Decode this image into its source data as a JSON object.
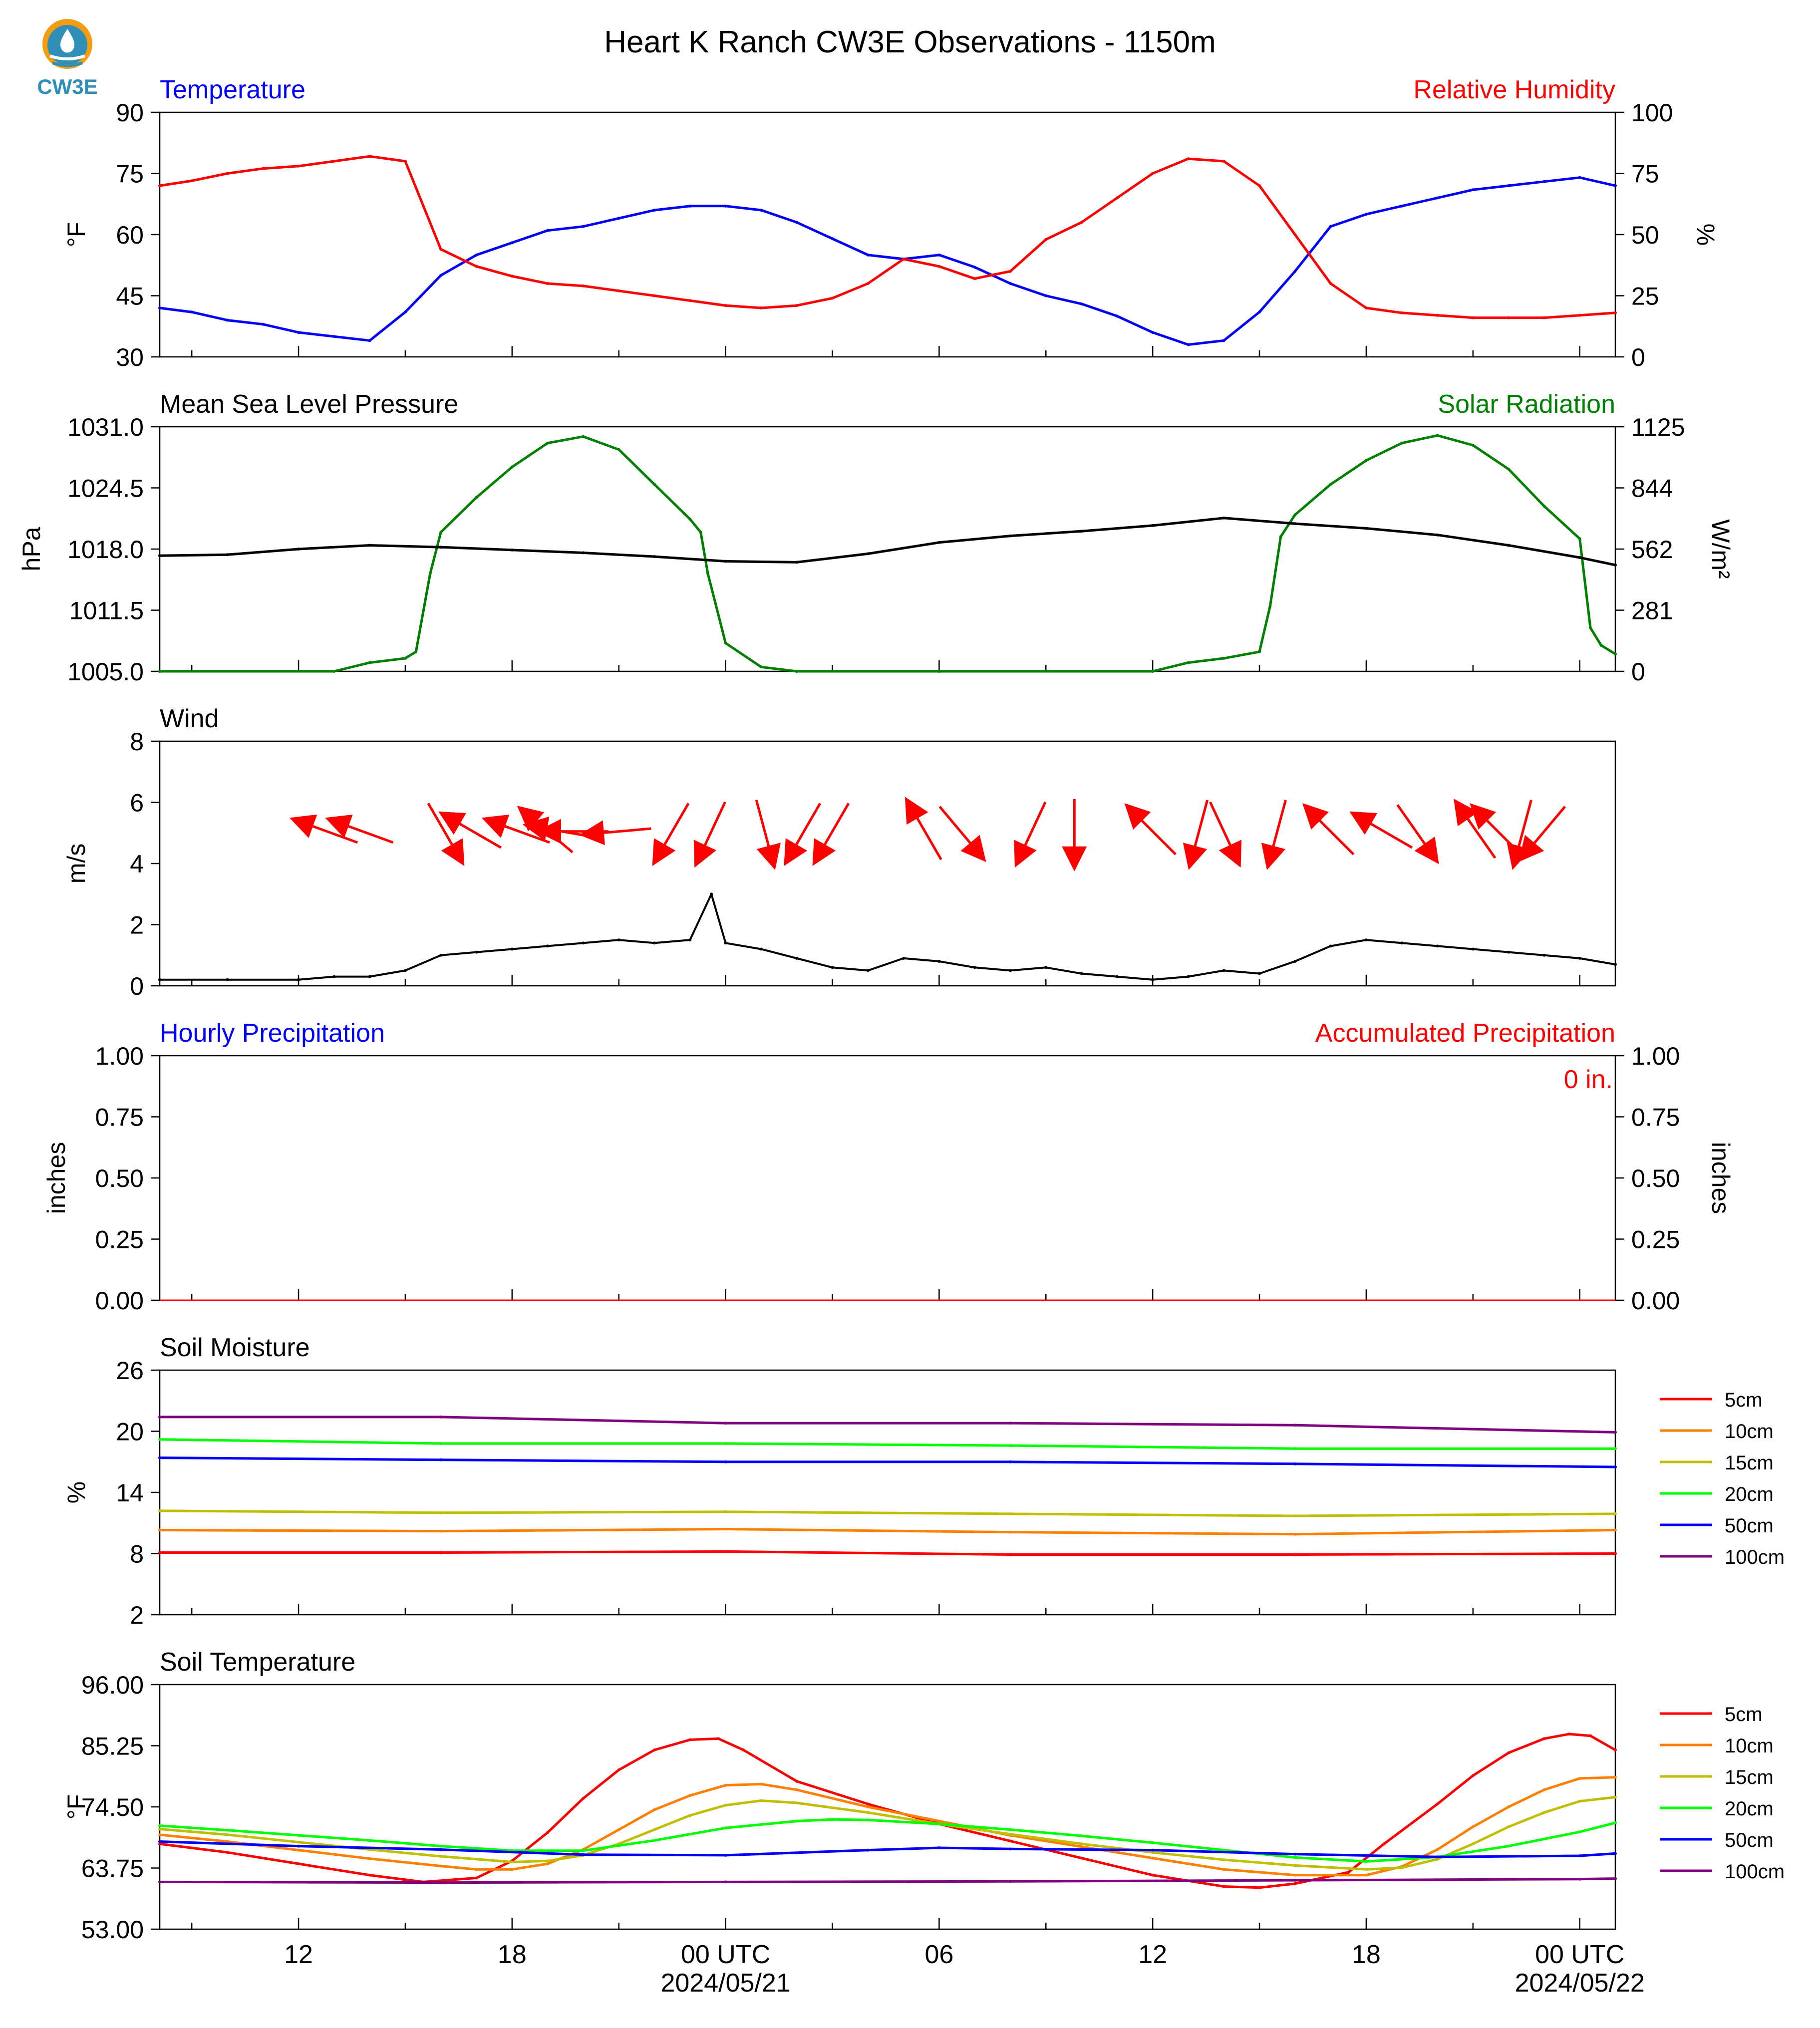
{
  "logo": {
    "text": "CW3E"
  },
  "title": "Heart K Ranch CW3E Observations - 1150m",
  "time_axis": {
    "tick_labels": [
      {
        "hour": 12,
        "label": "12"
      },
      {
        "hour": 18,
        "label": "18"
      },
      {
        "hour": 24,
        "label": "00 UTC",
        "sublabel": "2024/05/21"
      },
      {
        "hour": 30,
        "label": "06"
      },
      {
        "hour": 36,
        "label": "12"
      },
      {
        "hour": 42,
        "label": "18"
      },
      {
        "hour": 48,
        "label": "00 UTC",
        "sublabel": "2024/05/22"
      }
    ],
    "range_hours": [
      8.1,
      49.0
    ]
  },
  "panels": {
    "temperature": {
      "left_title": "Temperature",
      "right_title": "Relative Humidity",
      "left_unit": "°F",
      "right_unit": "%",
      "left_ticks": [
        "30",
        "45",
        "60",
        "75",
        "90"
      ],
      "right_ticks": [
        "0",
        "25",
        "50",
        "75",
        "100"
      ]
    },
    "pressure": {
      "left_title": "Mean Sea Level Pressure",
      "right_title": "Solar Radiation",
      "left_unit": "hPa",
      "right_unit": "W/m²",
      "left_ticks": [
        "1005.0",
        "1011.5",
        "1018.0",
        "1024.5",
        "1031.0"
      ],
      "right_ticks": [
        "0",
        "281",
        "562",
        "844",
        "1125"
      ]
    },
    "wind": {
      "left_title": "Wind",
      "left_unit": "m/s",
      "left_ticks": [
        "0",
        "2",
        "4",
        "6",
        "8"
      ]
    },
    "precip": {
      "left_title": "Hourly Precipitation",
      "right_title": "Accumulated Precipitation",
      "left_unit": "inches",
      "right_unit": "inches",
      "left_ticks": [
        "0.00",
        "0.25",
        "0.50",
        "0.75",
        "1.00"
      ],
      "right_ticks": [
        "0.00",
        "0.25",
        "0.50",
        "0.75",
        "1.00"
      ],
      "total_label": "0 in."
    },
    "soil_moisture": {
      "left_title": "Soil Moisture",
      "left_unit": "%",
      "left_ticks": [
        "2",
        "8",
        "14",
        "20",
        "26"
      ]
    },
    "soil_temperature": {
      "left_title": "Soil Temperature",
      "left_unit": "°F",
      "left_ticks": [
        "53.00",
        "63.75",
        "74.50",
        "85.25",
        "96.00"
      ]
    }
  },
  "legend": [
    "5cm",
    "10cm",
    "15cm",
    "20cm",
    "50cm",
    "100cm"
  ],
  "colors": {
    "temperature": "#0000ff",
    "humidity": "#ff0000",
    "pressure": "#000000",
    "solar": "#008000",
    "wind": "#000000",
    "wind_arrow": "#ff0000",
    "left_title_blue": "#0000ff",
    "right_title_red": "#ff0000",
    "right_title_green": "#008000",
    "logo": "#2f8fb7",
    "depths": [
      "#ff0000",
      "#ff8000",
      "#bfbf00",
      "#00ff00",
      "#0000ff",
      "#800080"
    ]
  },
  "chart_data": [
    {
      "type": "line",
      "title": "Temperature / Relative Humidity",
      "x_unit": "hours since 2024-05-20 00 UTC",
      "ylim": [
        30,
        90
      ],
      "y2lim": [
        0,
        100
      ],
      "series": [
        {
          "name": "Temperature",
          "axis": "left",
          "x": [
            8.1,
            9,
            10,
            11,
            12,
            13,
            14,
            15,
            16,
            17,
            18,
            19,
            20,
            21,
            22,
            23,
            24,
            25,
            26,
            27,
            28,
            29,
            30,
            31,
            32,
            33,
            34,
            35,
            36,
            37,
            38,
            39,
            40,
            41,
            42,
            43,
            44,
            45,
            46,
            47,
            48,
            49
          ],
          "y": [
            42,
            41,
            39,
            38,
            36,
            35,
            34,
            41,
            50,
            55,
            58,
            61,
            62,
            64,
            66,
            67,
            67,
            66,
            63,
            59,
            55,
            54,
            55,
            52,
            48,
            45,
            43,
            40,
            36,
            33,
            34,
            41,
            51,
            62,
            65,
            67,
            69,
            71,
            72,
            73,
            74,
            72
          ]
        },
        {
          "name": "Relative Humidity",
          "axis": "right",
          "x": [
            8.1,
            9,
            10,
            11,
            12,
            13,
            14,
            15,
            16,
            17,
            18,
            19,
            20,
            21,
            22,
            23,
            24,
            25,
            26,
            27,
            28,
            29,
            30,
            31,
            32,
            33,
            34,
            35,
            36,
            37,
            38,
            39,
            40,
            41,
            42,
            43,
            44,
            45,
            46,
            47,
            48,
            49
          ],
          "y": [
            70,
            72,
            75,
            77,
            78,
            80,
            82,
            80,
            44,
            37,
            33,
            30,
            29,
            27,
            25,
            23,
            21,
            20,
            21,
            24,
            30,
            40,
            37,
            32,
            35,
            48,
            55,
            65,
            75,
            81,
            80,
            70,
            50,
            30,
            20,
            18,
            17,
            16,
            16,
            16,
            17,
            18
          ]
        }
      ]
    },
    {
      "type": "line",
      "title": "Mean Sea Level Pressure / Solar Radiation",
      "ylim": [
        1005.0,
        1031.0
      ],
      "y2lim": [
        0,
        1125
      ],
      "series": [
        {
          "name": "Mean Sea Level Pressure",
          "axis": "left",
          "x": [
            8.1,
            10,
            12,
            14,
            16,
            18,
            20,
            22,
            24,
            26,
            28,
            30,
            32,
            34,
            36,
            38,
            40,
            42,
            44,
            46,
            48,
            49
          ],
          "y": [
            1017.3,
            1017.4,
            1018.0,
            1018.4,
            1018.2,
            1017.9,
            1017.6,
            1017.2,
            1016.7,
            1016.6,
            1017.5,
            1018.7,
            1019.4,
            1019.9,
            1020.5,
            1021.3,
            1020.7,
            1020.2,
            1019.5,
            1018.4,
            1017.1,
            1016.3
          ]
        },
        {
          "name": "Solar Radiation",
          "axis": "right",
          "x": [
            8.1,
            13,
            14,
            15,
            15.3,
            15.7,
            16,
            17,
            18,
            19,
            20,
            21,
            22,
            23,
            23.3,
            23.5,
            24,
            25,
            26,
            30,
            36,
            37,
            38,
            39,
            39.3,
            39.6,
            40,
            41,
            42,
            43,
            44,
            45,
            46,
            47,
            48,
            48.3,
            48.6,
            49
          ],
          "y": [
            0,
            0,
            40,
            60,
            90,
            450,
            640,
            800,
            940,
            1050,
            1080,
            1020,
            860,
            700,
            640,
            450,
            130,
            20,
            0,
            0,
            0,
            40,
            60,
            90,
            300,
            620,
            720,
            860,
            970,
            1050,
            1085,
            1040,
            930,
            760,
            610,
            200,
            120,
            80
          ]
        }
      ]
    },
    {
      "type": "line",
      "title": "Wind",
      "ylim": [
        0,
        8
      ],
      "series": [
        {
          "name": "Wind speed",
          "x": [
            8.1,
            10,
            12,
            13,
            14,
            15,
            16,
            17,
            18,
            19,
            20,
            21,
            22,
            23,
            23.6,
            24,
            25,
            26,
            27,
            28,
            29,
            30,
            31,
            32,
            33,
            34,
            35,
            36,
            37,
            38,
            39,
            40,
            41,
            42,
            43,
            44,
            45,
            46,
            47,
            48,
            49
          ],
          "y": [
            0.2,
            0.2,
            0.2,
            0.3,
            0.3,
            0.5,
            1.0,
            1.1,
            1.2,
            1.3,
            1.4,
            1.5,
            1.4,
            1.5,
            3.0,
            1.4,
            1.2,
            0.9,
            0.6,
            0.5,
            0.9,
            0.8,
            0.6,
            0.5,
            0.6,
            0.4,
            0.3,
            0.2,
            0.3,
            0.5,
            0.4,
            0.8,
            1.3,
            1.5,
            1.4,
            1.3,
            1.2,
            1.1,
            1.0,
            0.9,
            0.7
          ]
        },
        {
          "name": "Wind direction",
          "hours": [
            12.8,
            13.8,
            16.1,
            16.9,
            18.2,
            19.0,
            19.4,
            19.8,
            21.0,
            22.5,
            23.6,
            25.1,
            26.2,
            27.0,
            29.6,
            30.6,
            32.6,
            33.8,
            36.0,
            37.3,
            38.0,
            39.5,
            41.0,
            42.5,
            43.4,
            45.1,
            45.7,
            46.4,
            47.0
          ],
          "dir_deg": [
            110,
            110,
            330,
            120,
            110,
            130,
            100,
            90,
            85,
            30,
            25,
            345,
            30,
            30,
            150,
            320,
            25,
            0,
            135,
            15,
            335,
            15,
            135,
            120,
            325,
            145,
            135,
            15,
            40
          ]
        }
      ]
    },
    {
      "type": "line",
      "title": "Hourly Precipitation / Accumulated Precipitation",
      "ylim": [
        0,
        1
      ],
      "y2lim": [
        0,
        1
      ],
      "series": [
        {
          "name": "Hourly Precipitation",
          "x": [
            8.1,
            49
          ],
          "y": [
            0,
            0
          ]
        },
        {
          "name": "Accumulated Precipitation",
          "x": [
            8.1,
            49
          ],
          "y": [
            0,
            0
          ]
        }
      ]
    },
    {
      "type": "line",
      "title": "Soil Moisture",
      "ylim": [
        2,
        26
      ],
      "series": [
        {
          "name": "5cm",
          "x": [
            8.1,
            16,
            24,
            32,
            40,
            49
          ],
          "y": [
            8.1,
            8.1,
            8.2,
            7.9,
            7.9,
            8.0
          ]
        },
        {
          "name": "10cm",
          "x": [
            8.1,
            16,
            24,
            32,
            40,
            49
          ],
          "y": [
            10.3,
            10.2,
            10.4,
            10.1,
            9.9,
            10.3
          ]
        },
        {
          "name": "15cm",
          "x": [
            8.1,
            16,
            24,
            32,
            40,
            49
          ],
          "y": [
            12.2,
            12.0,
            12.1,
            11.9,
            11.7,
            11.9
          ]
        },
        {
          "name": "20cm",
          "x": [
            8.1,
            16,
            24,
            32,
            40,
            49
          ],
          "y": [
            19.2,
            18.8,
            18.8,
            18.6,
            18.3,
            18.3
          ]
        },
        {
          "name": "50cm",
          "x": [
            8.1,
            16,
            24,
            32,
            40,
            49
          ],
          "y": [
            17.4,
            17.2,
            17.0,
            17.0,
            16.8,
            16.5
          ]
        },
        {
          "name": "100cm",
          "x": [
            8.1,
            16,
            24,
            32,
            40,
            49
          ],
          "y": [
            21.4,
            21.4,
            20.8,
            20.8,
            20.6,
            19.9
          ]
        }
      ]
    },
    {
      "type": "line",
      "title": "Soil Temperature",
      "ylim": [
        53.0,
        96.0
      ],
      "series": [
        {
          "name": "5cm",
          "x": [
            8.1,
            10,
            12,
            14,
            15.5,
            17,
            18,
            19,
            20,
            21,
            22,
            23,
            23.8,
            24.5,
            26,
            28,
            30,
            32,
            34,
            36,
            38,
            39,
            40,
            41.5,
            42.5,
            44,
            45,
            46,
            47,
            47.7,
            48.3,
            49
          ],
          "y": [
            68,
            66.5,
            64.5,
            62.5,
            61.3,
            62,
            65,
            70,
            76,
            81,
            84.5,
            86.3,
            86.5,
            84.5,
            79,
            75,
            71.5,
            68.5,
            65.5,
            62.5,
            60.5,
            60.3,
            61,
            63,
            68,
            75,
            80,
            84,
            86.5,
            87.3,
            87,
            84.5
          ]
        },
        {
          "name": "10cm",
          "x": [
            8.1,
            10,
            12,
            14,
            16,
            17,
            18,
            19,
            20,
            21,
            22,
            23,
            24,
            25,
            26,
            28,
            30,
            32,
            34,
            36,
            38,
            40,
            42,
            43,
            44,
            45,
            46,
            47,
            48,
            49
          ],
          "y": [
            69.6,
            68.4,
            66.9,
            65.4,
            64.1,
            63.5,
            63.5,
            64.5,
            67,
            70.5,
            74,
            76.5,
            78.3,
            78.5,
            77.5,
            74.5,
            72,
            69.5,
            67.5,
            65.5,
            63.5,
            62.5,
            62.5,
            64,
            67,
            71,
            74.5,
            77.5,
            79.5,
            79.7
          ]
        },
        {
          "name": "15cm",
          "x": [
            8.1,
            10,
            12,
            14,
            16,
            18,
            19,
            20,
            21,
            22,
            23,
            24,
            25,
            26,
            28,
            30,
            32,
            34,
            36,
            38,
            40,
            42,
            43,
            44,
            45,
            46,
            47,
            48,
            49
          ],
          "y": [
            70.6,
            69.6,
            68.3,
            67.0,
            65.8,
            64.8,
            65,
            66,
            68,
            70.5,
            73,
            74.8,
            75.6,
            75.2,
            73.5,
            71.5,
            69.7,
            68,
            66.5,
            65.2,
            64.2,
            63.5,
            63.8,
            65.3,
            68,
            71,
            73.5,
            75.5,
            76.2
          ]
        },
        {
          "name": "20cm",
          "x": [
            8.1,
            10,
            12,
            14,
            16,
            18,
            20,
            22,
            24,
            26,
            27,
            28,
            30,
            32,
            34,
            36,
            38,
            40,
            42,
            44,
            46,
            48,
            49
          ],
          "y": [
            71.2,
            70.4,
            69.5,
            68.6,
            67.6,
            66.8,
            66.8,
            68.6,
            70.8,
            72,
            72.3,
            72.2,
            71.5,
            70.5,
            69.4,
            68.2,
            66.9,
            65.6,
            64.9,
            65.7,
            67.6,
            70.1,
            71.7
          ]
        },
        {
          "name": "50cm",
          "x": [
            8.1,
            12,
            16,
            20,
            24,
            28,
            30,
            32,
            36,
            40,
            44,
            48,
            49
          ],
          "y": [
            68.4,
            67.6,
            67.0,
            66.1,
            66.0,
            66.9,
            67.3,
            67.1,
            66.9,
            66.2,
            65.7,
            65.9,
            66.3
          ]
        },
        {
          "name": "100cm",
          "x": [
            8.1,
            16,
            24,
            32,
            40,
            48,
            49
          ],
          "y": [
            61.3,
            61.2,
            61.3,
            61.4,
            61.6,
            61.8,
            61.9
          ]
        }
      ]
    }
  ]
}
